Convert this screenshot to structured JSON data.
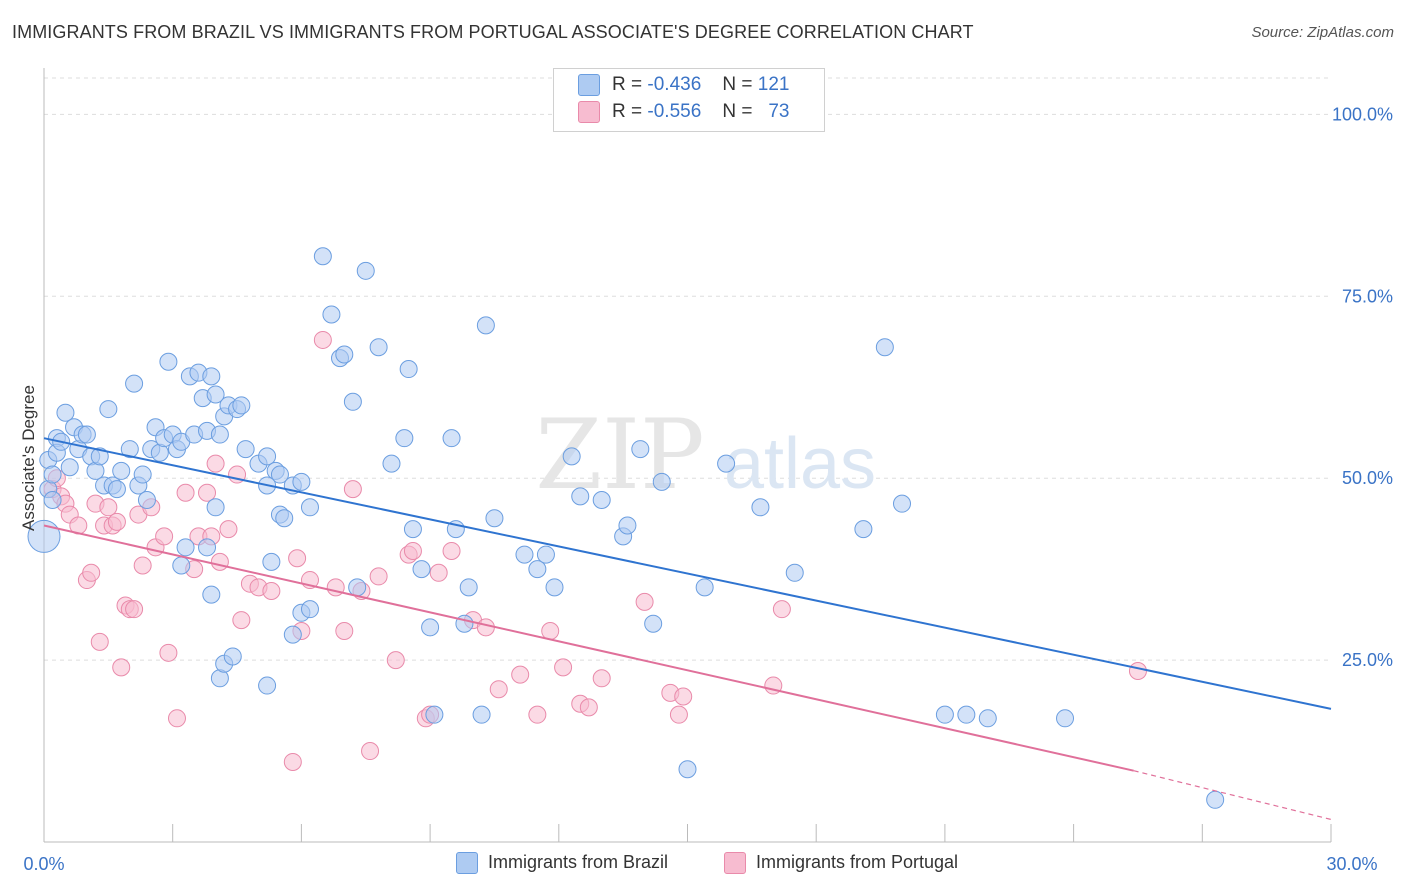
{
  "header": {
    "title": "IMMIGRANTS FROM BRAZIL VS IMMIGRANTS FROM PORTUGAL ASSOCIATE'S DEGREE CORRELATION CHART",
    "source": "Source: ZipAtlas.com"
  },
  "watermark": {
    "zip": "ZIP",
    "atlas": "atlas"
  },
  "legend": {
    "r_label": "R =",
    "n_label": "N =",
    "brazil": {
      "r": "-0.436",
      "n": "121"
    },
    "portugal": {
      "r": "-0.556",
      "n": "73"
    }
  },
  "colors": {
    "brazil_fill": "#aecbf2",
    "brazil_stroke": "#6b9ee0",
    "brazil_line": "#2f74d0",
    "portugal_fill": "#f7bcd0",
    "portugal_stroke": "#e98aaa",
    "portugal_line": "#e0709a",
    "tick_text": "#3a73c6",
    "grid": "#dddddd"
  },
  "chart_data": {
    "type": "scatter",
    "title": "IMMIGRANTS FROM BRAZIL VS IMMIGRANTS FROM PORTUGAL ASSOCIATE'S DEGREE CORRELATION CHART",
    "xlabel": "",
    "ylabel": "Associate's Degree",
    "xlim": [
      0,
      30
    ],
    "ylim": [
      0,
      105
    ],
    "x_tick_labels": [
      "0.0%",
      "30.0%"
    ],
    "y_ticks": [
      25,
      50,
      75,
      100
    ],
    "y_tick_labels": [
      "25.0%",
      "50.0%",
      "75.0%",
      "100.0%"
    ],
    "grid": true,
    "legend_position": "top-center",
    "series": [
      {
        "name": "Immigrants from Brazil",
        "r": -0.436,
        "n": 121,
        "trend": {
          "x": [
            0,
            30
          ],
          "y": [
            55.5,
            18.3
          ]
        },
        "points": [
          [
            0.1,
            48.5
          ],
          [
            0.1,
            52.5
          ],
          [
            0.2,
            50.5
          ],
          [
            0.3,
            55.5
          ],
          [
            0.3,
            53.5
          ],
          [
            0.4,
            55
          ],
          [
            0.5,
            59
          ],
          [
            0.6,
            51.5
          ],
          [
            0.7,
            57
          ],
          [
            0.8,
            54
          ],
          [
            0.9,
            56
          ],
          [
            1.0,
            56
          ],
          [
            1.1,
            53
          ],
          [
            1.2,
            51
          ],
          [
            1.3,
            53
          ],
          [
            1.4,
            49
          ],
          [
            1.5,
            59.5
          ],
          [
            1.6,
            49
          ],
          [
            1.7,
            48.5
          ],
          [
            1.8,
            51
          ],
          [
            2.0,
            54
          ],
          [
            2.1,
            63
          ],
          [
            2.2,
            49
          ],
          [
            2.3,
            50.5
          ],
          [
            2.4,
            47
          ],
          [
            2.5,
            54
          ],
          [
            2.6,
            57
          ],
          [
            2.7,
            53.5
          ],
          [
            2.8,
            55.5
          ],
          [
            2.9,
            66
          ],
          [
            3.0,
            56
          ],
          [
            3.1,
            54
          ],
          [
            3.2,
            55
          ],
          [
            3.4,
            64
          ],
          [
            3.5,
            56
          ],
          [
            3.6,
            64.5
          ],
          [
            3.7,
            61
          ],
          [
            3.8,
            56.5
          ],
          [
            3.9,
            64
          ],
          [
            4.0,
            61.5
          ],
          [
            4.1,
            56
          ],
          [
            4.2,
            58.5
          ],
          [
            4.3,
            60
          ],
          [
            4.5,
            59.5
          ],
          [
            4.6,
            60
          ],
          [
            4.7,
            54
          ],
          [
            5.0,
            52
          ],
          [
            5.2,
            53
          ],
          [
            5.4,
            51
          ],
          [
            5.5,
            50.5
          ],
          [
            5.8,
            49
          ],
          [
            6.0,
            49.5
          ],
          [
            6.2,
            46
          ],
          [
            4.0,
            46
          ],
          [
            3.8,
            40.5
          ],
          [
            3.2,
            38
          ],
          [
            3.3,
            40.5
          ],
          [
            3.9,
            34
          ],
          [
            4.1,
            22.5
          ],
          [
            4.2,
            24.5
          ],
          [
            4.4,
            25.5
          ],
          [
            5.2,
            21.5
          ],
          [
            5.3,
            38.5
          ],
          [
            5.2,
            49
          ],
          [
            5.5,
            45
          ],
          [
            5.6,
            44.5
          ],
          [
            5.8,
            28.5
          ],
          [
            6.0,
            31.5
          ],
          [
            6.2,
            32
          ],
          [
            6.5,
            80.5
          ],
          [
            6.7,
            72.5
          ],
          [
            6.9,
            66.5
          ],
          [
            7.0,
            67
          ],
          [
            7.2,
            60.5
          ],
          [
            7.3,
            35
          ],
          [
            7.5,
            78.5
          ],
          [
            7.8,
            68
          ],
          [
            8.1,
            52
          ],
          [
            8.4,
            55.5
          ],
          [
            8.5,
            65
          ],
          [
            8.6,
            43
          ],
          [
            8.8,
            37.5
          ],
          [
            9.0,
            29.5
          ],
          [
            9.1,
            17.5
          ],
          [
            9.5,
            55.5
          ],
          [
            9.6,
            43
          ],
          [
            9.8,
            30
          ],
          [
            9.9,
            35
          ],
          [
            10.2,
            17.5
          ],
          [
            10.3,
            71
          ],
          [
            10.5,
            44.5
          ],
          [
            11.2,
            39.5
          ],
          [
            11.5,
            37.5
          ],
          [
            11.7,
            39.5
          ],
          [
            11.9,
            35
          ],
          [
            12.3,
            53
          ],
          [
            12.5,
            47.5
          ],
          [
            13.0,
            47
          ],
          [
            13.5,
            42
          ],
          [
            13.6,
            43.5
          ],
          [
            13.9,
            54
          ],
          [
            14.2,
            30
          ],
          [
            14.4,
            49.5
          ],
          [
            15.0,
            10
          ],
          [
            15.4,
            35
          ],
          [
            15.9,
            52
          ],
          [
            16.7,
            46
          ],
          [
            17.5,
            37
          ],
          [
            19.1,
            43
          ],
          [
            19.6,
            68
          ],
          [
            20.0,
            46.5
          ],
          [
            21.0,
            17.5
          ],
          [
            21.5,
            17.5
          ],
          [
            22.0,
            17
          ],
          [
            23.8,
            17
          ],
          [
            27.3,
            5.8
          ],
          [
            0.0,
            42
          ],
          [
            0.2,
            47
          ]
        ]
      },
      {
        "name": "Immigrants from Portugal",
        "r": -0.556,
        "n": 73,
        "trend": {
          "x": [
            0,
            25.4
          ],
          "y": [
            43.5,
            9.8
          ]
        },
        "trend_dashed": {
          "x": [
            25.4,
            30
          ],
          "y": [
            9.8,
            3.1
          ]
        },
        "points": [
          [
            0.2,
            48.5
          ],
          [
            0.3,
            50
          ],
          [
            0.4,
            47.5
          ],
          [
            0.5,
            46.5
          ],
          [
            0.6,
            45
          ],
          [
            0.8,
            43.5
          ],
          [
            1.0,
            36
          ],
          [
            1.1,
            37
          ],
          [
            1.2,
            46.5
          ],
          [
            1.3,
            27.5
          ],
          [
            1.4,
            43.5
          ],
          [
            1.5,
            46
          ],
          [
            1.6,
            43.5
          ],
          [
            1.7,
            44
          ],
          [
            1.8,
            24
          ],
          [
            1.9,
            32.5
          ],
          [
            2.0,
            32
          ],
          [
            2.1,
            32
          ],
          [
            2.2,
            45
          ],
          [
            2.3,
            38
          ],
          [
            2.5,
            46
          ],
          [
            2.6,
            40.5
          ],
          [
            2.8,
            42
          ],
          [
            2.9,
            26
          ],
          [
            3.1,
            17
          ],
          [
            3.3,
            48
          ],
          [
            3.5,
            37.5
          ],
          [
            3.6,
            42
          ],
          [
            3.8,
            48
          ],
          [
            3.9,
            42
          ],
          [
            4.0,
            52
          ],
          [
            4.1,
            38.5
          ],
          [
            4.3,
            43
          ],
          [
            4.5,
            50.5
          ],
          [
            4.6,
            30.5
          ],
          [
            4.8,
            35.5
          ],
          [
            5.0,
            35
          ],
          [
            5.3,
            34.5
          ],
          [
            5.8,
            11
          ],
          [
            5.9,
            39
          ],
          [
            6.0,
            29
          ],
          [
            6.2,
            36
          ],
          [
            6.5,
            69
          ],
          [
            6.8,
            35
          ],
          [
            7.0,
            29
          ],
          [
            7.2,
            48.5
          ],
          [
            7.4,
            34.5
          ],
          [
            7.6,
            12.5
          ],
          [
            7.8,
            36.5
          ],
          [
            8.2,
            25
          ],
          [
            8.5,
            39.5
          ],
          [
            8.6,
            40
          ],
          [
            8.9,
            17
          ],
          [
            9.0,
            17.5
          ],
          [
            9.2,
            37
          ],
          [
            9.5,
            40
          ],
          [
            10.0,
            30.5
          ],
          [
            10.3,
            29.5
          ],
          [
            10.6,
            21
          ],
          [
            11.1,
            23
          ],
          [
            11.5,
            17.5
          ],
          [
            11.8,
            29
          ],
          [
            12.1,
            24
          ],
          [
            12.5,
            19
          ],
          [
            12.7,
            18.5
          ],
          [
            13.0,
            22.5
          ],
          [
            14.0,
            33
          ],
          [
            14.6,
            20.5
          ],
          [
            14.8,
            17.5
          ],
          [
            14.9,
            20
          ],
          [
            17.0,
            21.5
          ],
          [
            17.2,
            32
          ],
          [
            25.5,
            23.5
          ]
        ]
      }
    ]
  },
  "bottom_legend": {
    "brazil_label": "Immigrants from Brazil",
    "portugal_label": "Immigrants from Portugal"
  }
}
